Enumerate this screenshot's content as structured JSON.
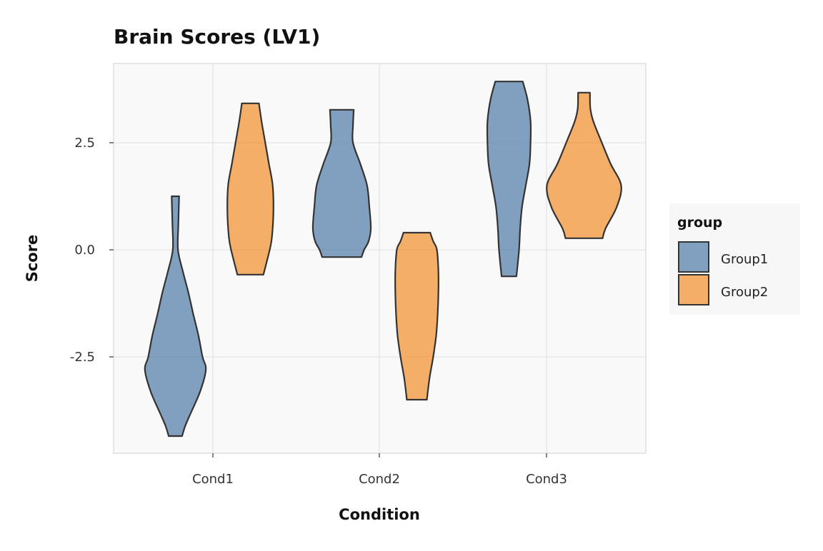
{
  "chart_data": {
    "type": "violin",
    "title": "Brain Scores (LV1)",
    "xlabel": "Condition",
    "ylabel": "Score",
    "categories": [
      "Cond1",
      "Cond2",
      "Cond3"
    ],
    "yticks": [
      2.5,
      0.0,
      -2.5
    ],
    "ytick_labels": [
      "2.5",
      "0.0",
      "-2.5"
    ],
    "ylim": [
      -4.75,
      4.35
    ],
    "grid": true,
    "legend": {
      "title": "group",
      "position": "right",
      "entries": [
        "Group1",
        "Group2"
      ]
    },
    "colors": {
      "Group1": "#4e79a7",
      "Group2": "#f28e2b"
    },
    "series": [
      {
        "name": "Group1",
        "violins": [
          {
            "category": "Cond1",
            "min": -4.35,
            "max": 1.25,
            "density": [
              [
                1.25,
                0.1
              ],
              [
                0.6,
                0.08
              ],
              [
                0,
                0.07
              ],
              [
                -0.5,
                0.2
              ],
              [
                -1.0,
                0.35
              ],
              [
                -1.5,
                0.48
              ],
              [
                -2.0,
                0.62
              ],
              [
                -2.5,
                0.73
              ],
              [
                -2.8,
                0.82
              ],
              [
                -3.3,
                0.67
              ],
              [
                -3.8,
                0.42
              ],
              [
                -4.1,
                0.27
              ],
              [
                -4.35,
                0.18
              ]
            ]
          },
          {
            "category": "Cond2",
            "min": -0.17,
            "max": 3.27,
            "density": [
              [
                3.27,
                0.32
              ],
              [
                2.9,
                0.3
              ],
              [
                2.5,
                0.3
              ],
              [
                2.0,
                0.5
              ],
              [
                1.5,
                0.68
              ],
              [
                1.0,
                0.74
              ],
              [
                0.5,
                0.78
              ],
              [
                0.2,
                0.72
              ],
              [
                0,
                0.6
              ],
              [
                -0.17,
                0.53
              ]
            ]
          },
          {
            "category": "Cond3",
            "min": -0.62,
            "max": 3.93,
            "density": [
              [
                3.93,
                0.37
              ],
              [
                3.5,
                0.5
              ],
              [
                3.0,
                0.58
              ],
              [
                2.5,
                0.58
              ],
              [
                2.0,
                0.55
              ],
              [
                1.5,
                0.45
              ],
              [
                1.0,
                0.35
              ],
              [
                0.5,
                0.3
              ],
              [
                0,
                0.27
              ],
              [
                -0.62,
                0.2
              ]
            ]
          }
        ]
      },
      {
        "name": "Group2",
        "violins": [
          {
            "category": "Cond1",
            "min": -0.58,
            "max": 3.42,
            "density": [
              [
                3.42,
                0.23
              ],
              [
                3.0,
                0.3
              ],
              [
                2.5,
                0.4
              ],
              [
                2.0,
                0.5
              ],
              [
                1.5,
                0.6
              ],
              [
                0.9,
                0.62
              ],
              [
                0.3,
                0.58
              ],
              [
                0,
                0.52
              ],
              [
                -0.58,
                0.35
              ]
            ]
          },
          {
            "category": "Cond2",
            "min": -3.5,
            "max": 0.4,
            "density": [
              [
                0.4,
                0.36
              ],
              [
                0.2,
                0.44
              ],
              [
                0,
                0.54
              ],
              [
                -0.5,
                0.58
              ],
              [
                -1.0,
                0.58
              ],
              [
                -1.5,
                0.56
              ],
              [
                -2.0,
                0.52
              ],
              [
                -2.5,
                0.44
              ],
              [
                -3.0,
                0.34
              ],
              [
                -3.5,
                0.27
              ]
            ]
          },
          {
            "category": "Cond3",
            "min": 0.27,
            "max": 3.67,
            "density": [
              [
                3.67,
                0.16
              ],
              [
                3.3,
                0.17
              ],
              [
                3.0,
                0.25
              ],
              [
                2.5,
                0.48
              ],
              [
                2.0,
                0.72
              ],
              [
                1.5,
                1.0
              ],
              [
                1.0,
                0.88
              ],
              [
                0.5,
                0.58
              ],
              [
                0.27,
                0.5
              ]
            ]
          }
        ]
      }
    ]
  }
}
